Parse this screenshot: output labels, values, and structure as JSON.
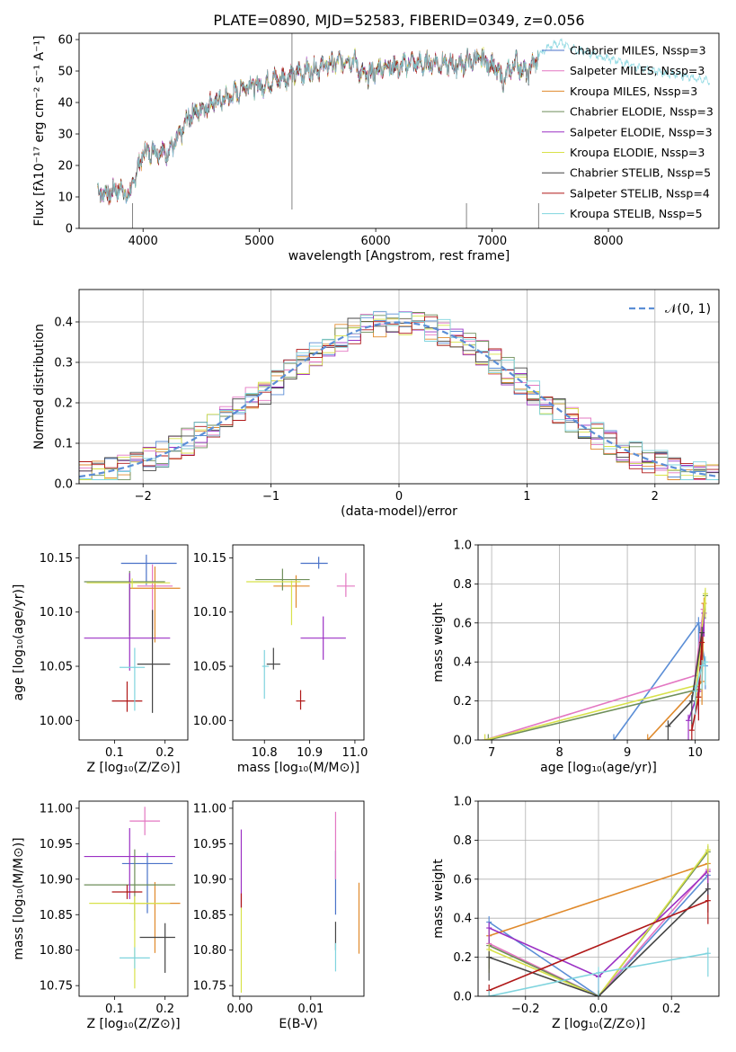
{
  "chart_data": [
    {
      "panel": "spectrum",
      "type": "line",
      "title": "PLATE=0890, MJD=52583, FIBERID=0349, z=0.056",
      "xlabel": "wavelength [Angstrom, rest frame]",
      "ylabel": "Flux [fλ10⁻¹⁷ erg cm⁻² s⁻¹ A⁻¹]",
      "xlim": [
        3450,
        8950
      ],
      "ylim": [
        0,
        62
      ],
      "xticks": [
        4000,
        5000,
        6000,
        7000,
        8000
      ],
      "yticks": [
        0,
        10,
        20,
        30,
        40,
        50,
        60
      ],
      "grid": false,
      "legend_position": "right",
      "spectrum_anchors": {
        "x": [
          3610,
          3700,
          3800,
          3880,
          3920,
          4000,
          4100,
          4200,
          4300,
          4400,
          4500,
          4600,
          4700,
          4800,
          4900,
          5000,
          5100,
          5200,
          5300,
          5400,
          5500,
          5600,
          5700,
          5800,
          5900,
          6000,
          6100,
          6200,
          6300,
          6400,
          6500,
          6600,
          6700,
          6800,
          6900,
          7000,
          7100,
          7200,
          7300,
          7400,
          7500,
          7600,
          7700,
          7800,
          7900,
          8000,
          8100,
          8200,
          8300,
          8400,
          8500,
          8600,
          8700,
          8800
        ],
        "y": [
          12,
          11,
          13,
          10,
          15,
          24,
          25,
          24,
          28,
          36,
          38,
          40,
          41,
          43,
          46,
          45,
          47,
          48,
          49,
          50,
          51,
          52,
          53,
          54,
          48,
          50,
          52,
          51,
          53,
          52,
          53,
          52,
          52,
          53,
          54,
          52,
          47,
          53,
          49,
          55,
          58,
          59,
          57,
          56,
          55,
          54,
          53,
          52,
          51,
          50,
          49,
          49,
          48,
          47
        ]
      },
      "series": [
        {
          "name": "Chabrier MILES, N_SSP=3",
          "color": "#4a72c8"
        },
        {
          "name": "Salpeter MILES, N_SSP=3",
          "color": "#e377c2"
        },
        {
          "name": "Kroupa MILES, N_SSP=3",
          "color": "#e08a2c"
        },
        {
          "name": "Chabrier ELODIE, N_SSP=3",
          "color": "#6e8e5a"
        },
        {
          "name": "Salpeter ELODIE, N_SSP=3",
          "color": "#9b30c4"
        },
        {
          "name": "Kroupa ELODIE, N_SSP=3",
          "color": "#d8e24a"
        },
        {
          "name": "Chabrier STELIB, N_SSP=5",
          "color": "#444444"
        },
        {
          "name": "Salpeter STELIB, N_SSP=4",
          "color": "#b01818"
        },
        {
          "name": "Kroupa STELIB, N_SSP=5",
          "color": "#7fd4de"
        }
      ]
    },
    {
      "panel": "residuals",
      "type": "line",
      "xlabel": "(data-model)/error",
      "ylabel": "Normed distribution",
      "xlim": [
        -2.5,
        2.5
      ],
      "ylim": [
        0,
        0.48
      ],
      "xticks": [
        -2,
        -1,
        0,
        1,
        2
      ],
      "yticks": [
        0.0,
        0.1,
        0.2,
        0.3,
        0.4
      ],
      "grid": true,
      "legend": "𝒩(0, 1)",
      "legend_position": "top-right",
      "normal_curve": {
        "mean": 0,
        "sigma": 1,
        "color": "#5b8ed6"
      },
      "bin_width": 0.1,
      "histogram_colors": [
        "#5b8ed6",
        "#e377c2",
        "#e08a2c",
        "#6e8e5a",
        "#9b30c4",
        "#d8e24a",
        "#444444",
        "#b01818",
        "#7fd4de"
      ]
    },
    {
      "panel": "age-vs-Z",
      "type": "scatter",
      "xlabel": "Z [log₁₀(Z/Z⊙)]",
      "ylabel": "age  [log₁₀(age/yr)]",
      "xlim": [
        0.03,
        0.245
      ],
      "ylim": [
        9.982,
        10.162
      ],
      "xticks": [
        0.1,
        0.2
      ],
      "yticks": [
        10.0,
        10.05,
        10.1,
        10.15
      ],
      "grid": false,
      "points": [
        {
          "x": 0.163,
          "y": 10.145,
          "xerr": [
            0.05,
            0.06
          ],
          "yerr": [
            0.02,
            0.008
          ],
          "color": "#4a72c8"
        },
        {
          "x": 0.175,
          "y": 10.124,
          "xerr": [
            0.03,
            0.04
          ],
          "yerr": [
            0.04,
            0.02
          ],
          "color": "#e377c2"
        },
        {
          "x": 0.18,
          "y": 10.122,
          "xerr": [
            0.05,
            0.05
          ],
          "yerr": [
            0.05,
            0.02
          ],
          "color": "#e08a2c"
        },
        {
          "x": 0.13,
          "y": 10.128,
          "xerr": [
            0.09,
            0.07
          ],
          "yerr": [
            0.05,
            0.01
          ],
          "color": "#6e8e5a"
        },
        {
          "x": 0.13,
          "y": 10.076,
          "xerr": [
            0.09,
            0.08
          ],
          "yerr": [
            0.03,
            0.06
          ],
          "color": "#9b30c4"
        },
        {
          "x": 0.135,
          "y": 10.127,
          "xerr": [
            0.09,
            0.075
          ],
          "yerr": [
            0.005,
            0.004
          ],
          "color": "#d8e24a"
        },
        {
          "x": 0.175,
          "y": 10.052,
          "xerr": [
            0.03,
            0.035
          ],
          "yerr": [
            0.045,
            0.05
          ],
          "color": "#444444"
        },
        {
          "x": 0.125,
          "y": 10.018,
          "xerr": [
            0.03,
            0.03
          ],
          "yerr": [
            0.01,
            0.018
          ],
          "color": "#b01818"
        },
        {
          "x": 0.14,
          "y": 10.049,
          "xerr": [
            0.03,
            0.02
          ],
          "yerr": [
            0.04,
            0.018
          ],
          "color": "#7fd4de"
        }
      ]
    },
    {
      "panel": "age-vs-mass",
      "type": "scatter",
      "xlabel": "mass [log₁₀(M/M⊙)]",
      "xlim": [
        10.73,
        11.02
      ],
      "ylim": [
        9.982,
        10.162
      ],
      "xticks": [
        10.8,
        10.9,
        11.0
      ],
      "yticks": [
        10.0,
        10.05,
        10.1,
        10.15
      ],
      "grid": false,
      "points": [
        {
          "x": 10.92,
          "y": 10.145,
          "xerr": [
            0.04,
            0.02
          ],
          "yerr": [
            0.005,
            0.006
          ],
          "color": "#4a72c8"
        },
        {
          "x": 10.98,
          "y": 10.124,
          "xerr": [
            0.02,
            0.02
          ],
          "yerr": [
            0.01,
            0.012
          ],
          "color": "#e377c2"
        },
        {
          "x": 10.87,
          "y": 10.124,
          "xerr": [
            0.05,
            0.03
          ],
          "yerr": [
            0.02,
            0.01
          ],
          "color": "#e08a2c"
        },
        {
          "x": 10.84,
          "y": 10.13,
          "xerr": [
            0.06,
            0.06
          ],
          "yerr": [
            0.01,
            0.01
          ],
          "color": "#6e8e5a"
        },
        {
          "x": 10.93,
          "y": 10.076,
          "xerr": [
            0.05,
            0.05
          ],
          "yerr": [
            0.02,
            0.02
          ],
          "color": "#9b30c4"
        },
        {
          "x": 10.86,
          "y": 10.128,
          "xerr": [
            0.1,
            0.02
          ],
          "yerr": [
            0.04,
            0.001
          ],
          "color": "#d8e24a"
        },
        {
          "x": 10.82,
          "y": 10.052,
          "xerr": [
            0.015,
            0.015
          ],
          "yerr": [
            0.005,
            0.015
          ],
          "color": "#444444"
        },
        {
          "x": 10.88,
          "y": 10.018,
          "xerr": [
            0.01,
            0.01
          ],
          "yerr": [
            0.008,
            0.01
          ],
          "color": "#b01818"
        },
        {
          "x": 10.8,
          "y": 10.05,
          "xerr": [
            0.005,
            0.01
          ],
          "yerr": [
            0.03,
            0.015
          ],
          "color": "#7fd4de"
        }
      ]
    },
    {
      "panel": "mass-weight-vs-age",
      "type": "line",
      "xlabel": "age  [log₁₀(age/yr)]",
      "ylabel": "mass weight",
      "xlim": [
        6.8,
        10.35
      ],
      "ylim": [
        0,
        1.0
      ],
      "xticks": [
        7,
        8,
        9,
        10
      ],
      "yticks": [
        0.0,
        0.2,
        0.4,
        0.6,
        0.8,
        1.0
      ],
      "grid": true,
      "series": [
        {
          "color": "#5b8ed6",
          "x": [
            8.8,
            10.05,
            10.15
          ],
          "y": [
            0.0,
            0.6,
            0.38
          ]
        },
        {
          "color": "#e377c2",
          "x": [
            6.9,
            10.0,
            10.12
          ],
          "y": [
            0.0,
            0.33,
            0.67
          ]
        },
        {
          "color": "#e08a2c",
          "x": [
            9.3,
            10.1,
            10.13
          ],
          "y": [
            0.0,
            0.3,
            0.7
          ]
        },
        {
          "color": "#6e8e5a",
          "x": [
            6.95,
            10.05,
            10.15
          ],
          "y": [
            0.0,
            0.26,
            0.74
          ]
        },
        {
          "color": "#9b30c4",
          "x": [
            9.9,
            10.05,
            10.13
          ],
          "y": [
            0.1,
            0.25,
            0.65
          ]
        },
        {
          "color": "#d8e24a",
          "x": [
            6.9,
            10.02,
            10.15
          ],
          "y": [
            0.0,
            0.28,
            0.75
          ]
        },
        {
          "color": "#444444",
          "x": [
            9.6,
            9.95,
            10.1
          ],
          "y": [
            0.07,
            0.2,
            0.55
          ]
        },
        {
          "color": "#b01818",
          "x": [
            9.95,
            10.05,
            10.1
          ],
          "y": [
            0.05,
            0.22,
            0.5
          ]
        },
        {
          "color": "#7fd4de",
          "x": [
            10.0,
            10.1,
            10.15
          ],
          "y": [
            0.25,
            0.38,
            0.4
          ]
        }
      ]
    },
    {
      "panel": "mass-vs-Z",
      "type": "scatter",
      "xlabel": "Z [log₁₀(Z/Z⊙)]",
      "ylabel": "mass [log₁₀(M/M⊙)]",
      "xlim": [
        0.03,
        0.245
      ],
      "ylim": [
        10.735,
        11.01
      ],
      "xticks": [
        0.1,
        0.2
      ],
      "yticks": [
        10.75,
        10.8,
        10.85,
        10.9,
        10.95,
        11.0
      ],
      "grid": false,
      "points": [
        {
          "x": 0.165,
          "y": 10.922,
          "xerr": [
            0.05,
            0.05
          ],
          "yerr": [
            0.07,
            0.015
          ],
          "color": "#4a72c8"
        },
        {
          "x": 0.16,
          "y": 10.982,
          "xerr": [
            0.03,
            0.03
          ],
          "yerr": [
            0.02,
            0.02
          ],
          "color": "#e377c2"
        },
        {
          "x": 0.18,
          "y": 10.866,
          "xerr": [
            0.05,
            0.05
          ],
          "yerr": [
            0.07,
            0.03
          ],
          "color": "#e08a2c"
        },
        {
          "x": 0.14,
          "y": 10.892,
          "xerr": [
            0.1,
            0.08
          ],
          "yerr": [
            0.05,
            0.05
          ],
          "color": "#6e8e5a"
        },
        {
          "x": 0.13,
          "y": 10.932,
          "xerr": [
            0.09,
            0.09
          ],
          "yerr": [
            0.06,
            0.04
          ],
          "color": "#9b30c4"
        },
        {
          "x": 0.14,
          "y": 10.866,
          "xerr": [
            0.09,
            0.07
          ],
          "yerr": [
            0.12,
            0.01
          ],
          "color": "#d8e24a"
        },
        {
          "x": 0.2,
          "y": 10.818,
          "xerr": [
            0.05,
            0.02
          ],
          "yerr": [
            0.05,
            0.02
          ],
          "color": "#444444"
        },
        {
          "x": 0.125,
          "y": 10.882,
          "xerr": [
            0.03,
            0.03
          ],
          "yerr": [
            0.01,
            0.01
          ],
          "color": "#b01818"
        },
        {
          "x": 0.14,
          "y": 10.789,
          "xerr": [
            0.03,
            0.03
          ],
          "yerr": [
            0.015,
            0.015
          ],
          "color": "#7fd4de"
        }
      ]
    },
    {
      "panel": "mass-vs-EBV",
      "type": "scatter",
      "xlabel": "E(B-V)",
      "xlim": [
        -0.001,
        0.0175
      ],
      "ylim": [
        10.735,
        11.01
      ],
      "xticks": [
        0.0,
        0.01
      ],
      "yticks": [
        10.75,
        10.8,
        10.85,
        10.9,
        10.95,
        11.0
      ],
      "grid": false,
      "points": [
        {
          "x": 0.0135,
          "y": 10.9,
          "yerr": [
            0.05,
            0.04
          ],
          "color": "#4a72c8"
        },
        {
          "x": 0.0135,
          "y": 10.95,
          "yerr": [
            0.05,
            0.045
          ],
          "color": "#e377c2"
        },
        {
          "x": 0.0168,
          "y": 10.845,
          "yerr": [
            0.05,
            0.05
          ],
          "color": "#e08a2c"
        },
        {
          "x": 0.0135,
          "y": 10.82,
          "yerr": [
            0.02,
            0.02
          ],
          "color": "#444444"
        },
        {
          "x": 0.0002,
          "y": 10.92,
          "yerr": [
            0.06,
            0.05
          ],
          "color": "#9b30c4"
        },
        {
          "x": 0.0002,
          "y": 10.8,
          "yerr": [
            0.06,
            0.06
          ],
          "color": "#d8e24a"
        },
        {
          "x": 0.0002,
          "y": 10.87,
          "yerr": [
            0.01,
            0.01
          ],
          "color": "#b01818"
        },
        {
          "x": 0.0135,
          "y": 10.79,
          "yerr": [
            0.02,
            0.02
          ],
          "color": "#7fd4de"
        }
      ]
    },
    {
      "panel": "mass-weight-vs-Z",
      "type": "line",
      "xlabel": "Z [log₁₀(Z/Z⊙)]",
      "ylabel": "mass weight",
      "xlim": [
        -0.33,
        0.33
      ],
      "ylim": [
        0,
        1.0
      ],
      "xticks": [
        -0.2,
        0.0,
        0.2
      ],
      "yticks": [
        0.0,
        0.2,
        0.4,
        0.6,
        0.8,
        1.0
      ],
      "grid": true,
      "series": [
        {
          "color": "#5b8ed6",
          "x": [
            -0.3,
            0.0,
            0.3
          ],
          "y": [
            0.38,
            0.0,
            0.62
          ]
        },
        {
          "color": "#e377c2",
          "x": [
            -0.3,
            0.0,
            0.3
          ],
          "y": [
            0.27,
            0.0,
            0.65
          ]
        },
        {
          "color": "#e08a2c",
          "x": [
            -0.3,
            0.3
          ],
          "y": [
            0.31,
            0.68
          ]
        },
        {
          "color": "#6e8e5a",
          "x": [
            -0.3,
            0.0,
            0.3
          ],
          "y": [
            0.26,
            0.0,
            0.74
          ]
        },
        {
          "color": "#9b30c4",
          "x": [
            -0.3,
            0.0,
            0.3
          ],
          "y": [
            0.35,
            0.1,
            0.64
          ]
        },
        {
          "color": "#d8e24a",
          "x": [
            -0.3,
            0.0,
            0.3
          ],
          "y": [
            0.24,
            0.0,
            0.75
          ]
        },
        {
          "color": "#444444",
          "x": [
            -0.3,
            0.0,
            0.3
          ],
          "y": [
            0.2,
            0.0,
            0.55
          ]
        },
        {
          "color": "#b01818",
          "x": [
            -0.3,
            0.3
          ],
          "y": [
            0.03,
            0.49
          ]
        },
        {
          "color": "#7fd4de",
          "x": [
            -0.3,
            0.0,
            0.3
          ],
          "y": [
            0.0,
            0.12,
            0.22
          ]
        }
      ]
    }
  ]
}
